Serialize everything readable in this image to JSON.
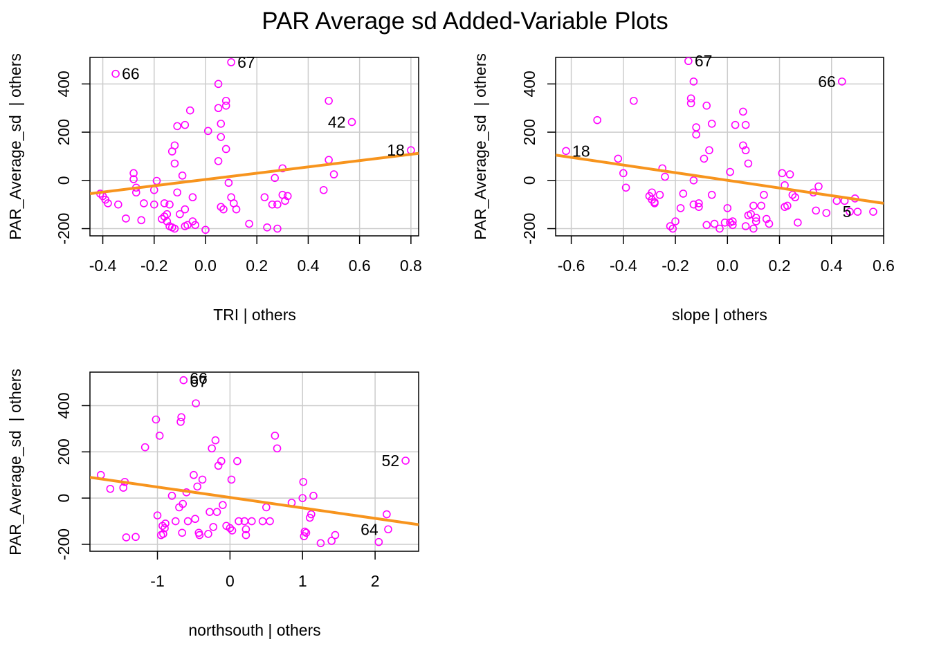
{
  "title": "PAR Average sd Added-Variable Plots",
  "colors": {
    "points": "#ff00ff",
    "fit_line": "#f7941d",
    "grid": "#cccccc",
    "frame": "#000000"
  },
  "chart_data": [
    {
      "type": "scatter",
      "xlabel": "TRI | others",
      "ylabel": "PAR_Average_sd  | others",
      "xlim": [
        -0.45,
        0.83
      ],
      "ylim": [
        -230,
        510
      ],
      "x_ticks": [
        -0.4,
        -0.2,
        0.0,
        0.2,
        0.4,
        0.6,
        0.8
      ],
      "x_tick_labels": [
        "-0.4",
        "-0.2",
        "0.0",
        "0.2",
        "0.4",
        "0.6",
        "0.8"
      ],
      "y_ticks": [
        -200,
        0,
        200,
        400
      ],
      "y_tick_labels": [
        "-200",
        "0",
        "200",
        "400"
      ],
      "grid": true,
      "fit_line": [
        [
          -0.45,
          -55
        ],
        [
          0.83,
          112
        ]
      ],
      "annotations": [
        {
          "label": "66",
          "x": -0.35,
          "y": 442
        },
        {
          "label": "67",
          "x": 0.1,
          "y": 490
        },
        {
          "label": "42",
          "x": 0.57,
          "y": 242
        },
        {
          "label": "18",
          "x": 0.8,
          "y": 125
        }
      ],
      "x": [
        -0.41,
        -0.4,
        -0.39,
        -0.38,
        -0.34,
        -0.35,
        -0.31,
        -0.28,
        -0.28,
        -0.27,
        -0.27,
        -0.25,
        -0.24,
        -0.2,
        -0.2,
        -0.19,
        -0.17,
        -0.16,
        -0.16,
        -0.15,
        -0.15,
        -0.14,
        -0.14,
        -0.13,
        -0.13,
        -0.12,
        -0.12,
        -0.12,
        -0.11,
        -0.11,
        -0.1,
        -0.09,
        -0.08,
        -0.08,
        -0.08,
        -0.07,
        -0.06,
        -0.05,
        -0.05,
        -0.04,
        0.0,
        0.01,
        0.05,
        0.05,
        0.05,
        0.06,
        0.06,
        0.06,
        0.07,
        0.08,
        0.08,
        0.08,
        0.09,
        0.1,
        0.1,
        0.11,
        0.12,
        0.17,
        0.23,
        0.24,
        0.26,
        0.27,
        0.28,
        0.28,
        0.3,
        0.3,
        0.31,
        0.32,
        0.46,
        0.48,
        0.48,
        0.5,
        0.57,
        0.8
      ],
      "y": [
        -55,
        -65,
        -80,
        -95,
        -100,
        442,
        -158,
        30,
        5,
        -30,
        -50,
        -165,
        -95,
        -40,
        -100,
        -2,
        -160,
        -95,
        -150,
        -170,
        -140,
        -190,
        -100,
        -195,
        120,
        70,
        -200,
        145,
        225,
        -50,
        -140,
        20,
        230,
        -190,
        -120,
        -185,
        290,
        -70,
        -170,
        -185,
        -205,
        205,
        80,
        400,
        300,
        -110,
        180,
        235,
        -120,
        330,
        310,
        130,
        -10,
        -70,
        490,
        -95,
        -120,
        -180,
        -70,
        -195,
        -100,
        10,
        -100,
        -200,
        50,
        -60,
        -85,
        -65,
        -40,
        330,
        85,
        25,
        242,
        125
      ]
    },
    {
      "type": "scatter",
      "xlabel": "slope | others",
      "ylabel": "PAR_Average_sd  | others",
      "xlim": [
        -0.66,
        0.6
      ],
      "ylim": [
        -230,
        510
      ],
      "x_ticks": [
        -0.6,
        -0.4,
        -0.2,
        0.0,
        0.2,
        0.4,
        0.6
      ],
      "x_tick_labels": [
        "-0.6",
        "-0.4",
        "-0.2",
        "0.0",
        "0.2",
        "0.4",
        "0.6"
      ],
      "y_ticks": [
        -200,
        0,
        200,
        400
      ],
      "y_tick_labels": [
        "-200",
        "0",
        "200",
        "400"
      ],
      "grid": true,
      "fit_line": [
        [
          -0.66,
          105
        ],
        [
          0.6,
          -95
        ]
      ],
      "annotations": [
        {
          "label": "67",
          "x": -0.15,
          "y": 495
        },
        {
          "label": "66",
          "x": 0.44,
          "y": 410
        },
        {
          "label": "18",
          "x": -0.62,
          "y": 122
        },
        {
          "label": "5",
          "x": 0.5,
          "y": -130
        }
      ],
      "x": [
        -0.62,
        -0.5,
        -0.42,
        -0.4,
        -0.39,
        -0.36,
        -0.3,
        -0.29,
        -0.29,
        -0.28,
        -0.28,
        -0.26,
        -0.25,
        -0.24,
        -0.22,
        -0.21,
        -0.2,
        -0.18,
        -0.17,
        -0.15,
        -0.14,
        -0.14,
        -0.13,
        -0.13,
        -0.13,
        -0.12,
        -0.12,
        -0.11,
        -0.11,
        -0.09,
        -0.08,
        -0.08,
        -0.07,
        -0.06,
        -0.06,
        -0.05,
        -0.03,
        -0.01,
        0.0,
        0.01,
        0.01,
        0.02,
        0.02,
        0.03,
        0.06,
        0.06,
        0.07,
        0.07,
        0.07,
        0.08,
        0.08,
        0.09,
        0.1,
        0.1,
        0.11,
        0.11,
        0.13,
        0.14,
        0.15,
        0.16,
        0.21,
        0.22,
        0.22,
        0.23,
        0.24,
        0.25,
        0.26,
        0.27,
        0.33,
        0.34,
        0.35,
        0.38,
        0.42,
        0.44,
        0.45,
        0.47,
        0.49,
        0.5,
        0.56
      ],
      "y": [
        122,
        250,
        90,
        30,
        -30,
        330,
        -65,
        -50,
        -80,
        -90,
        -95,
        -60,
        50,
        15,
        -190,
        -200,
        -170,
        -115,
        -55,
        495,
        340,
        320,
        410,
        -100,
        0,
        190,
        220,
        -110,
        -95,
        90,
        310,
        -185,
        125,
        -60,
        235,
        -180,
        -200,
        -175,
        -115,
        35,
        -175,
        -170,
        -185,
        230,
        145,
        285,
        -190,
        125,
        230,
        -145,
        70,
        -140,
        -200,
        -105,
        -155,
        -170,
        -105,
        -60,
        -160,
        -180,
        30,
        -20,
        -110,
        -105,
        25,
        -60,
        -70,
        -175,
        -50,
        -125,
        -25,
        -135,
        -85,
        410,
        -85,
        -130,
        -75,
        -130,
        -130
      ]
    },
    {
      "type": "scatter",
      "xlabel": "northsouth | others",
      "ylabel": "PAR_Average_sd  | others",
      "xlim": [
        -1.93,
        2.6
      ],
      "ylim": [
        -230,
        545
      ],
      "x_ticks": [
        -1,
        0,
        1,
        2
      ],
      "x_tick_labels": [
        "-1",
        "0",
        "1",
        "2"
      ],
      "y_ticks": [
        -200,
        0,
        200,
        400
      ],
      "y_tick_labels": [
        "-200",
        "0",
        "200",
        "400"
      ],
      "grid": true,
      "fit_line": [
        [
          -1.93,
          90
        ],
        [
          2.6,
          -115
        ]
      ],
      "annotations": [
        {
          "label": "66",
          "x": -0.64,
          "y": 518
        },
        {
          "label": "67",
          "x": -0.64,
          "y": 505
        },
        {
          "label": "52",
          "x": 2.42,
          "y": 162
        },
        {
          "label": "64",
          "x": 2.13,
          "y": -135
        }
      ],
      "x": [
        -1.78,
        -1.65,
        -1.47,
        -1.45,
        -1.43,
        -1.3,
        -1.17,
        -1.02,
        -1.0,
        -0.97,
        -0.95,
        -0.93,
        -0.92,
        -0.9,
        -0.89,
        -0.8,
        -0.75,
        -0.7,
        -0.68,
        -0.67,
        -0.66,
        -0.65,
        -0.64,
        -0.6,
        -0.58,
        -0.5,
        -0.48,
        -0.47,
        -0.45,
        -0.43,
        -0.42,
        -0.38,
        -0.3,
        -0.28,
        -0.25,
        -0.23,
        -0.2,
        -0.18,
        -0.16,
        -0.12,
        -0.1,
        -0.05,
        0.0,
        0.02,
        0.03,
        0.1,
        0.12,
        0.2,
        0.22,
        0.22,
        0.3,
        0.45,
        0.5,
        0.55,
        0.62,
        0.65,
        0.85,
        1.0,
        1.01,
        1.02,
        1.03,
        1.05,
        1.1,
        1.12,
        1.15,
        1.25,
        1.4,
        1.45,
        2.05,
        2.16,
        2.18,
        2.42
      ],
      "y": [
        100,
        40,
        45,
        70,
        -170,
        -168,
        220,
        340,
        -75,
        270,
        -160,
        -120,
        -155,
        -130,
        -110,
        10,
        -100,
        -40,
        330,
        350,
        -150,
        -25,
        510,
        25,
        -100,
        100,
        -90,
        410,
        50,
        -150,
        -160,
        80,
        -155,
        -60,
        215,
        -125,
        250,
        -60,
        140,
        160,
        -30,
        -120,
        -130,
        80,
        -140,
        160,
        -100,
        -100,
        -135,
        -160,
        -100,
        -100,
        -40,
        -100,
        270,
        215,
        -20,
        0,
        70,
        -165,
        -145,
        -150,
        -85,
        -70,
        10,
        -195,
        -185,
        -160,
        -190,
        -70,
        -135,
        162
      ]
    }
  ]
}
